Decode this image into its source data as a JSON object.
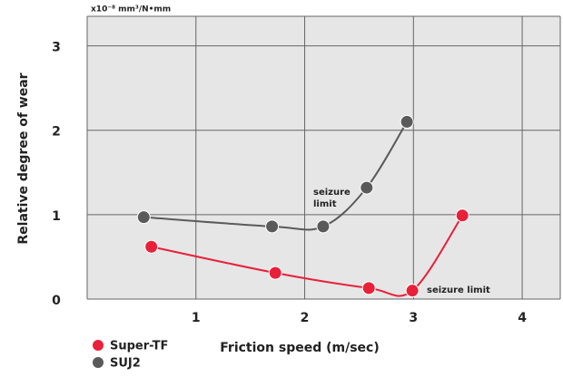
{
  "chart_data": {
    "type": "line",
    "unit_label": "x10⁻⁸ mm³/N•mm",
    "x_label": "Friction speed (m/sec)",
    "y_label": "Relative degree of wear",
    "xlim": [
      0,
      4.35
    ],
    "ylim": [
      0,
      3.35
    ],
    "xticks": [
      1,
      2,
      3,
      4
    ],
    "yticks": [
      0,
      1,
      2,
      3
    ],
    "grid": true,
    "legend": "bottom-left",
    "series": [
      {
        "name": "Super-TF",
        "color": "#e8203a",
        "x": [
          0.59,
          1.73,
          2.59,
          2.99,
          3.45
        ],
        "values": [
          0.62,
          0.31,
          0.13,
          0.1,
          0.99
        ]
      },
      {
        "name": "SUJ2",
        "color": "#5a5a5a",
        "x": [
          0.52,
          1.7,
          2.17,
          2.57,
          2.94
        ],
        "values": [
          0.97,
          0.86,
          0.86,
          1.32,
          2.1
        ]
      }
    ],
    "annotations": [
      {
        "lines": [
          "seizure",
          "limit"
        ]
      },
      {
        "lines": [
          "seizure limit"
        ]
      }
    ]
  }
}
